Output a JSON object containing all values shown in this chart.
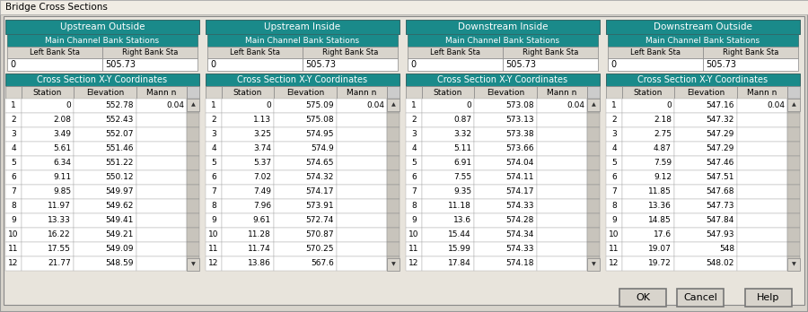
{
  "title": "Bridge Cross Sections",
  "teal_color": "#1a8a8a",
  "teal_header_text": "#ffffff",
  "bg_color": "#e8e4dc",
  "dialog_bg": "#d8d4cc",
  "table_bg": "#ffffff",
  "border_color": "#808080",
  "text_color": "#000000",
  "title_bar_color": "#f0ece4",
  "sections": [
    {
      "title": "Upstream Outside",
      "left_bank": "0",
      "right_bank": "505.73",
      "data": [
        [
          "1",
          "0",
          "552.78",
          "0.04"
        ],
        [
          "2",
          "2.08",
          "552.43",
          ""
        ],
        [
          "3",
          "3.49",
          "552.07",
          ""
        ],
        [
          "4",
          "5.61",
          "551.46",
          ""
        ],
        [
          "5",
          "6.34",
          "551.22",
          ""
        ],
        [
          "6",
          "9.11",
          "550.12",
          ""
        ],
        [
          "7",
          "9.85",
          "549.97",
          ""
        ],
        [
          "8",
          "11.97",
          "549.62",
          ""
        ],
        [
          "9",
          "13.33",
          "549.41",
          ""
        ],
        [
          "10",
          "16.22",
          "549.21",
          ""
        ],
        [
          "11",
          "17.55",
          "549.09",
          ""
        ],
        [
          "12",
          "21.77",
          "548.59",
          ""
        ]
      ]
    },
    {
      "title": "Upstream Inside",
      "left_bank": "0",
      "right_bank": "505.73",
      "data": [
        [
          "1",
          "0",
          "575.09",
          "0.04"
        ],
        [
          "2",
          "1.13",
          "575.08",
          ""
        ],
        [
          "3",
          "3.25",
          "574.95",
          ""
        ],
        [
          "4",
          "3.74",
          "574.9",
          ""
        ],
        [
          "5",
          "5.37",
          "574.65",
          ""
        ],
        [
          "6",
          "7.02",
          "574.32",
          ""
        ],
        [
          "7",
          "7.49",
          "574.17",
          ""
        ],
        [
          "8",
          "7.96",
          "573.91",
          ""
        ],
        [
          "9",
          "9.61",
          "572.74",
          ""
        ],
        [
          "10",
          "11.28",
          "570.87",
          ""
        ],
        [
          "11",
          "11.74",
          "570.25",
          ""
        ],
        [
          "12",
          "13.86",
          "567.6",
          ""
        ]
      ]
    },
    {
      "title": "Downstream Inside",
      "left_bank": "0",
      "right_bank": "505.73",
      "data": [
        [
          "1",
          "0",
          "573.08",
          "0.04"
        ],
        [
          "2",
          "0.87",
          "573.13",
          ""
        ],
        [
          "3",
          "3.32",
          "573.38",
          ""
        ],
        [
          "4",
          "5.11",
          "573.66",
          ""
        ],
        [
          "5",
          "6.91",
          "574.04",
          ""
        ],
        [
          "6",
          "7.55",
          "574.11",
          ""
        ],
        [
          "7",
          "9.35",
          "574.17",
          ""
        ],
        [
          "8",
          "11.18",
          "574.33",
          ""
        ],
        [
          "9",
          "13.6",
          "574.28",
          ""
        ],
        [
          "10",
          "15.44",
          "574.34",
          ""
        ],
        [
          "11",
          "15.99",
          "574.33",
          ""
        ],
        [
          "12",
          "17.84",
          "574.18",
          ""
        ]
      ]
    },
    {
      "title": "Downstream Outside",
      "left_bank": "0",
      "right_bank": "505.73",
      "data": [
        [
          "1",
          "0",
          "547.16",
          "0.04"
        ],
        [
          "2",
          "2.18",
          "547.32",
          ""
        ],
        [
          "3",
          "2.75",
          "547.29",
          ""
        ],
        [
          "4",
          "4.87",
          "547.29",
          ""
        ],
        [
          "5",
          "7.59",
          "547.46",
          ""
        ],
        [
          "6",
          "9.12",
          "547.51",
          ""
        ],
        [
          "7",
          "11.85",
          "547.68",
          ""
        ],
        [
          "8",
          "13.36",
          "547.73",
          ""
        ],
        [
          "9",
          "14.85",
          "547.84",
          ""
        ],
        [
          "10",
          "17.6",
          "547.93",
          ""
        ],
        [
          "11",
          "19.07",
          "548",
          ""
        ],
        [
          "12",
          "19.72",
          "548.02",
          ""
        ]
      ]
    }
  ]
}
